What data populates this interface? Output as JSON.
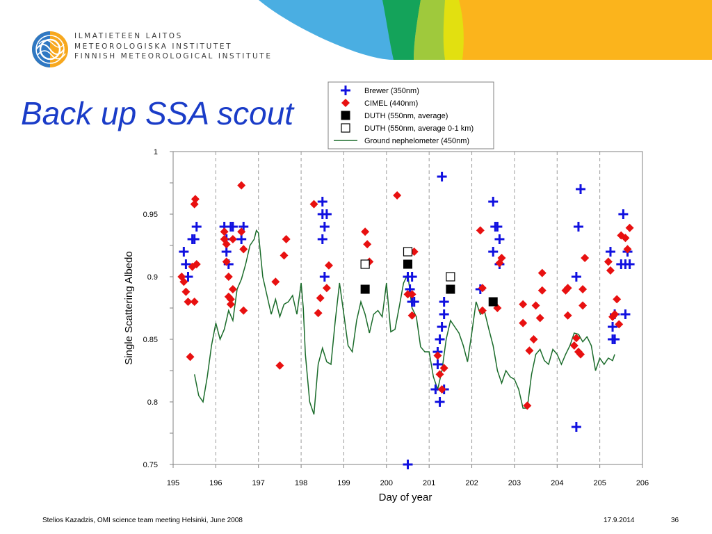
{
  "header": {
    "org_lines": [
      "ILMATIETEEN LAITOS",
      "METEOROLOGISKA INSTITUTET",
      "FINNISH METEOROLOGICAL INSTITUTE"
    ],
    "banner_colors": {
      "blue": "#4aaee2",
      "green": "#14a35a",
      "lime": "#9fc93c",
      "yellow": "#e2e010",
      "orange": "#fbb41c"
    }
  },
  "slide": {
    "title": "Back up SSA scout"
  },
  "footer": {
    "left": "Stelios Kazadzis, OMI science team meeting Helsinki, June 2008",
    "date": "17.9.2014",
    "page": "36"
  },
  "chart_data": {
    "type": "scatter",
    "title": "",
    "xlabel": "Day of year",
    "ylabel": "Single Scattering Albedo",
    "xlim": [
      195,
      206
    ],
    "ylim": [
      0.75,
      1
    ],
    "x_ticks": [
      "195",
      "196",
      "197",
      "198",
      "199",
      "200",
      "201",
      "202",
      "203",
      "204",
      "205",
      "206"
    ],
    "y_ticks": [
      "0.75",
      "0.8",
      "0.85",
      "0.9",
      "0.95",
      "1"
    ],
    "grid": "vertical dashed at each day",
    "legend_position": "top-right, above plot",
    "series": [
      {
        "name": "Brewer (350nm)",
        "marker": "plus",
        "color": "#1010e0",
        "points": [
          [
            195.25,
            0.92
          ],
          [
            195.3,
            0.91
          ],
          [
            195.35,
            0.9
          ],
          [
            195.45,
            0.93
          ],
          [
            195.5,
            0.93
          ],
          [
            195.55,
            0.94
          ],
          [
            196.2,
            0.94
          ],
          [
            196.25,
            0.93
          ],
          [
            196.25,
            0.92
          ],
          [
            196.3,
            0.91
          ],
          [
            196.35,
            0.94
          ],
          [
            196.4,
            0.94
          ],
          [
            196.6,
            0.93
          ],
          [
            196.65,
            0.94
          ],
          [
            198.5,
            0.96
          ],
          [
            198.5,
            0.95
          ],
          [
            198.6,
            0.95
          ],
          [
            198.55,
            0.94
          ],
          [
            198.5,
            0.93
          ],
          [
            198.55,
            0.9
          ],
          [
            200.5,
            0.75
          ],
          [
            200.5,
            0.9
          ],
          [
            200.55,
            0.89
          ],
          [
            200.6,
            0.88
          ],
          [
            200.65,
            0.88
          ],
          [
            200.6,
            0.9
          ],
          [
            201.15,
            0.81
          ],
          [
            201.2,
            0.83
          ],
          [
            201.2,
            0.84
          ],
          [
            201.25,
            0.85
          ],
          [
            201.3,
            0.86
          ],
          [
            201.35,
            0.87
          ],
          [
            201.35,
            0.88
          ],
          [
            201.3,
            0.98
          ],
          [
            201.25,
            0.8
          ],
          [
            201.35,
            0.81
          ],
          [
            202.2,
            0.89
          ],
          [
            202.5,
            0.96
          ],
          [
            202.5,
            0.92
          ],
          [
            202.55,
            0.94
          ],
          [
            202.6,
            0.94
          ],
          [
            202.65,
            0.93
          ],
          [
            202.65,
            0.91
          ],
          [
            204.45,
            0.9
          ],
          [
            204.5,
            0.94
          ],
          [
            204.55,
            0.97
          ],
          [
            204.45,
            0.78
          ],
          [
            205.25,
            0.92
          ],
          [
            205.3,
            0.86
          ],
          [
            205.3,
            0.85
          ],
          [
            205.35,
            0.85
          ],
          [
            205.35,
            0.87
          ],
          [
            205.5,
            0.91
          ],
          [
            205.6,
            0.91
          ],
          [
            205.6,
            0.87
          ],
          [
            205.55,
            0.95
          ],
          [
            205.7,
            0.91
          ],
          [
            205.65,
            0.92
          ]
        ]
      },
      {
        "name": "CIMEL (440nm)",
        "marker": "diamond",
        "color": "#e81010",
        "points": [
          [
            195.2,
            0.9
          ],
          [
            195.25,
            0.896
          ],
          [
            195.3,
            0.888
          ],
          [
            195.35,
            0.88
          ],
          [
            195.4,
            0.836
          ],
          [
            195.45,
            0.908
          ],
          [
            195.5,
            0.958
          ],
          [
            195.52,
            0.962
          ],
          [
            195.5,
            0.88
          ],
          [
            195.55,
            0.91
          ],
          [
            196.2,
            0.936
          ],
          [
            196.2,
            0.93
          ],
          [
            196.25,
            0.926
          ],
          [
            196.25,
            0.912
          ],
          [
            196.3,
            0.9
          ],
          [
            196.3,
            0.884
          ],
          [
            196.35,
            0.878
          ],
          [
            196.4,
            0.89
          ],
          [
            196.35,
            0.882
          ],
          [
            196.4,
            0.93
          ],
          [
            196.6,
            0.973
          ],
          [
            196.6,
            0.936
          ],
          [
            196.65,
            0.922
          ],
          [
            196.65,
            0.873
          ],
          [
            197.4,
            0.896
          ],
          [
            197.5,
            0.829
          ],
          [
            197.6,
            0.917
          ],
          [
            197.65,
            0.93
          ],
          [
            198.3,
            0.958
          ],
          [
            198.4,
            0.871
          ],
          [
            198.45,
            0.883
          ],
          [
            198.6,
            0.891
          ],
          [
            198.65,
            0.909
          ],
          [
            199.5,
            0.936
          ],
          [
            199.55,
            0.926
          ],
          [
            199.6,
            0.912
          ],
          [
            200.25,
            0.965
          ],
          [
            200.5,
            0.886
          ],
          [
            200.6,
            0.869
          ],
          [
            200.65,
            0.92
          ],
          [
            200.6,
            0.886
          ],
          [
            201.2,
            0.837
          ],
          [
            201.25,
            0.822
          ],
          [
            201.3,
            0.81
          ],
          [
            201.35,
            0.827
          ],
          [
            202.2,
            0.937
          ],
          [
            202.25,
            0.891
          ],
          [
            202.25,
            0.873
          ],
          [
            202.6,
            0.875
          ],
          [
            202.65,
            0.911
          ],
          [
            202.7,
            0.915
          ],
          [
            203.2,
            0.878
          ],
          [
            203.2,
            0.863
          ],
          [
            203.3,
            0.797
          ],
          [
            203.35,
            0.841
          ],
          [
            203.45,
            0.85
          ],
          [
            203.5,
            0.877
          ],
          [
            203.6,
            0.867
          ],
          [
            203.65,
            0.903
          ],
          [
            203.65,
            0.889
          ],
          [
            204.2,
            0.889
          ],
          [
            204.25,
            0.891
          ],
          [
            204.25,
            0.869
          ],
          [
            204.4,
            0.845
          ],
          [
            204.45,
            0.851
          ],
          [
            204.5,
            0.84
          ],
          [
            204.55,
            0.838
          ],
          [
            204.6,
            0.877
          ],
          [
            204.6,
            0.89
          ],
          [
            204.65,
            0.915
          ],
          [
            205.2,
            0.912
          ],
          [
            205.25,
            0.905
          ],
          [
            205.3,
            0.868
          ],
          [
            205.35,
            0.87
          ],
          [
            205.4,
            0.882
          ],
          [
            205.45,
            0.862
          ],
          [
            205.5,
            0.933
          ],
          [
            205.6,
            0.931
          ],
          [
            205.65,
            0.922
          ],
          [
            205.7,
            0.939
          ]
        ]
      },
      {
        "name": "DUTH (550nm, average)",
        "marker": "filled-square",
        "color": "#000000",
        "points": [
          [
            199.5,
            0.89
          ],
          [
            200.5,
            0.91
          ],
          [
            201.5,
            0.89
          ],
          [
            202.5,
            0.88
          ]
        ]
      },
      {
        "name": "DUTH (550nm, average 0-1 km)",
        "marker": "open-square",
        "color": "#000000",
        "points": [
          [
            199.5,
            0.91
          ],
          [
            200.5,
            0.92
          ],
          [
            201.5,
            0.9
          ]
        ]
      },
      {
        "name": "Ground nephelometer (450nm)",
        "marker": "line",
        "color": "#1a6b2a",
        "points": [
          [
            195.5,
            0.822
          ],
          [
            195.6,
            0.805
          ],
          [
            195.7,
            0.8
          ],
          [
            195.8,
            0.82
          ],
          [
            195.9,
            0.845
          ],
          [
            196.0,
            0.863
          ],
          [
            196.1,
            0.85
          ],
          [
            196.2,
            0.858
          ],
          [
            196.3,
            0.873
          ],
          [
            196.4,
            0.865
          ],
          [
            196.5,
            0.89
          ],
          [
            196.6,
            0.898
          ],
          [
            196.7,
            0.91
          ],
          [
            196.8,
            0.925
          ],
          [
            196.9,
            0.93
          ],
          [
            196.95,
            0.937
          ],
          [
            197.0,
            0.935
          ],
          [
            197.1,
            0.9
          ],
          [
            197.2,
            0.885
          ],
          [
            197.3,
            0.87
          ],
          [
            197.4,
            0.882
          ],
          [
            197.5,
            0.868
          ],
          [
            197.6,
            0.878
          ],
          [
            197.7,
            0.88
          ],
          [
            197.8,
            0.885
          ],
          [
            197.9,
            0.87
          ],
          [
            198.0,
            0.895
          ],
          [
            198.05,
            0.875
          ],
          [
            198.1,
            0.838
          ],
          [
            198.2,
            0.8
          ],
          [
            198.3,
            0.79
          ],
          [
            198.4,
            0.83
          ],
          [
            198.5,
            0.843
          ],
          [
            198.6,
            0.832
          ],
          [
            198.7,
            0.83
          ],
          [
            198.8,
            0.865
          ],
          [
            198.9,
            0.895
          ],
          [
            199.0,
            0.87
          ],
          [
            199.1,
            0.845
          ],
          [
            199.2,
            0.84
          ],
          [
            199.3,
            0.865
          ],
          [
            199.4,
            0.88
          ],
          [
            199.5,
            0.87
          ],
          [
            199.6,
            0.855
          ],
          [
            199.7,
            0.87
          ],
          [
            199.8,
            0.873
          ],
          [
            199.9,
            0.868
          ],
          [
            200.0,
            0.895
          ],
          [
            200.1,
            0.856
          ],
          [
            200.2,
            0.858
          ],
          [
            200.3,
            0.876
          ],
          [
            200.4,
            0.895
          ],
          [
            200.5,
            0.902
          ],
          [
            200.6,
            0.875
          ],
          [
            200.7,
            0.868
          ],
          [
            200.8,
            0.844
          ],
          [
            200.9,
            0.84
          ],
          [
            201.0,
            0.84
          ],
          [
            201.1,
            0.82
          ],
          [
            201.2,
            0.81
          ],
          [
            201.3,
            0.825
          ],
          [
            201.4,
            0.85
          ],
          [
            201.5,
            0.865
          ],
          [
            201.6,
            0.86
          ],
          [
            201.7,
            0.855
          ],
          [
            201.8,
            0.845
          ],
          [
            201.9,
            0.832
          ],
          [
            202.0,
            0.855
          ],
          [
            202.1,
            0.88
          ],
          [
            202.2,
            0.87
          ],
          [
            202.3,
            0.872
          ],
          [
            202.4,
            0.858
          ],
          [
            202.5,
            0.845
          ],
          [
            202.6,
            0.825
          ],
          [
            202.7,
            0.815
          ],
          [
            202.8,
            0.825
          ],
          [
            202.9,
            0.82
          ],
          [
            203.0,
            0.818
          ],
          [
            203.1,
            0.81
          ],
          [
            203.2,
            0.795
          ],
          [
            203.3,
            0.795
          ],
          [
            203.4,
            0.822
          ],
          [
            203.5,
            0.838
          ],
          [
            203.6,
            0.842
          ],
          [
            203.7,
            0.833
          ],
          [
            203.8,
            0.83
          ],
          [
            203.9,
            0.842
          ],
          [
            204.0,
            0.838
          ],
          [
            204.1,
            0.83
          ],
          [
            204.2,
            0.838
          ],
          [
            204.3,
            0.845
          ],
          [
            204.4,
            0.855
          ],
          [
            204.5,
            0.854
          ],
          [
            204.6,
            0.848
          ],
          [
            204.7,
            0.852
          ],
          [
            204.8,
            0.845
          ],
          [
            204.9,
            0.825
          ],
          [
            205.0,
            0.835
          ],
          [
            205.1,
            0.83
          ],
          [
            205.2,
            0.835
          ],
          [
            205.3,
            0.833
          ],
          [
            205.35,
            0.838
          ]
        ]
      }
    ]
  }
}
